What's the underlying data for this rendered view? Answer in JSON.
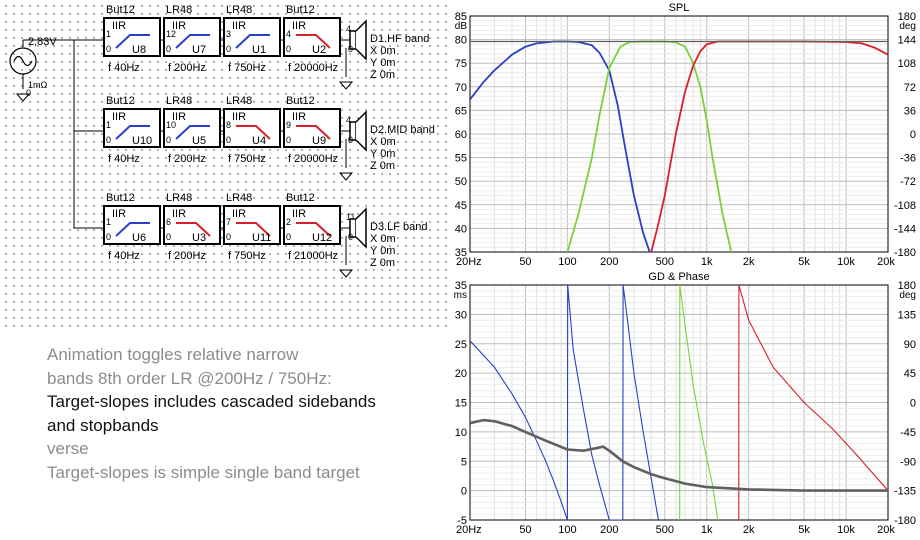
{
  "colors": {
    "hf_low_band": "#2b3fc7",
    "mid_band": "#7ad13a",
    "hf_band": "#d8202a",
    "total": "#606060",
    "grid": "#cfcfcf",
    "block_border": "#000000"
  },
  "source": {
    "voltage": "2,83V",
    "resistance": "1mΩ",
    "node": "0",
    "icon": "ac-source-icon"
  },
  "chains": [
    {
      "output": {
        "name": "D1.HF band",
        "x": "X 0m",
        "y": "Y 0m",
        "z": "Z 0m",
        "pin_top": "4",
        "pin_bottom": "0"
      },
      "blocks": [
        {
          "type": "But12",
          "kind": "IIR",
          "id": "U8",
          "freq": "f  40Hz",
          "pin_in": "1",
          "pin_gnd": "0",
          "slope": "highpass",
          "color": "#2b3fc7"
        },
        {
          "type": "LR48",
          "kind": "IIR",
          "id": "U7",
          "freq": "f  200Hz",
          "pin_in": "12",
          "pin_gnd": "0",
          "slope": "highpass",
          "color": "#2b3fc7"
        },
        {
          "type": "LR48",
          "kind": "IIR",
          "id": "U1",
          "freq": "f  750Hz",
          "pin_in": "3",
          "pin_gnd": "0",
          "slope": "highpass",
          "color": "#2b3fc7"
        },
        {
          "type": "But12",
          "kind": "IIR",
          "id": "U2",
          "freq": "f  20000Hz",
          "pin_in": "4",
          "pin_gnd": "0",
          "slope": "lowpass",
          "color": "#d8202a"
        }
      ]
    },
    {
      "output": {
        "name": "D2.MID band",
        "x": "X 0m",
        "y": "Y 0m",
        "z": "Z 0m",
        "pin_top": "4",
        "pin_bottom": "0"
      },
      "blocks": [
        {
          "type": "But12",
          "kind": "IIR",
          "id": "U10",
          "freq": "f  40Hz",
          "pin_in": "1",
          "pin_gnd": "0",
          "slope": "highpass",
          "color": "#2b3fc7"
        },
        {
          "type": "LR48",
          "kind": "IIR",
          "id": "U5",
          "freq": "f  200Hz",
          "pin_in": "10",
          "pin_gnd": "0",
          "slope": "highpass",
          "color": "#2b3fc7"
        },
        {
          "type": "LR48",
          "kind": "IIR",
          "id": "U4",
          "freq": "f  750Hz",
          "pin_in": "8",
          "pin_gnd": "0",
          "slope": "lowpass",
          "color": "#d8202a"
        },
        {
          "type": "But12",
          "kind": "IIR",
          "id": "U9",
          "freq": "f  20000Hz",
          "pin_in": "9",
          "pin_gnd": "0",
          "slope": "lowpass",
          "color": "#d8202a"
        }
      ]
    },
    {
      "output": {
        "name": "D3.LF band",
        "x": "X 0m",
        "y": "Y 0m",
        "z": "Z 0m",
        "pin_top": "11",
        "pin_bottom": "0"
      },
      "blocks": [
        {
          "type": "But12",
          "kind": "IIR",
          "id": "U6",
          "freq": "f  40Hz",
          "pin_in": "1",
          "pin_gnd": "0",
          "slope": "highpass",
          "color": "#2b3fc7"
        },
        {
          "type": "LR48",
          "kind": "IIR",
          "id": "U3",
          "freq": "f  200Hz",
          "pin_in": "6",
          "pin_gnd": "0",
          "slope": "lowpass",
          "color": "#d8202a"
        },
        {
          "type": "LR48",
          "kind": "IIR",
          "id": "U11",
          "freq": "f  750Hz",
          "pin_in": "7",
          "pin_gnd": "0",
          "slope": "lowpass",
          "color": "#d8202a"
        },
        {
          "type": "But12",
          "kind": "IIR",
          "id": "U12",
          "freq": "f  21000Hz",
          "pin_in": "2",
          "pin_gnd": "0",
          "slope": "lowpass",
          "color": "#d8202a"
        }
      ]
    }
  ],
  "notes": {
    "line1": "Animation toggles relative narrow",
    "line2": "bands 8th order LR @200Hz / 750Hz:",
    "line3": "Target-slopes includes cascaded sidebands",
    "line4": "and stopbands",
    "line5": "verse",
    "line6": "Target-slopes is simple single band target"
  },
  "chart_data": [
    {
      "type": "line",
      "title": "SPL",
      "x_scale": "log",
      "xlim": [
        20,
        20000
      ],
      "x_ticks": [
        "20Hz",
        "50",
        "100",
        "200",
        "500",
        "1k",
        "2k",
        "5k",
        "10k",
        "20k"
      ],
      "x_tick_values": [
        20,
        50,
        100,
        200,
        500,
        1000,
        2000,
        5000,
        10000,
        20000
      ],
      "y_unit": "dB",
      "ylim": [
        35,
        85
      ],
      "y_ticks": [
        "85",
        "80",
        "75",
        "70",
        "65",
        "60",
        "55",
        "50",
        "45",
        "40",
        "35"
      ],
      "y_tick_values": [
        85,
        80,
        75,
        70,
        65,
        60,
        55,
        50,
        45,
        40,
        35
      ],
      "y2_unit": "deg",
      "y2lim": [
        -180,
        180
      ],
      "y2_ticks": [
        "180",
        "144",
        "108",
        "72",
        "36",
        "0",
        "-36",
        "-72",
        "-108",
        "-144",
        "-180"
      ],
      "y2_tick_values": [
        180,
        144,
        108,
        72,
        36,
        0,
        -36,
        -72,
        -108,
        -144,
        -180
      ],
      "grid": true,
      "series": [
        {
          "color": "#2b3fc7",
          "x": [
            20,
            25,
            30,
            40,
            50,
            60,
            80,
            100,
            120,
            150,
            170,
            200,
            230,
            260,
            300,
            350,
            400
          ],
          "y": [
            67.3,
            71,
            73.5,
            76.8,
            78.5,
            79.2,
            79.6,
            79.6,
            79.5,
            78.8,
            77.2,
            73.5,
            66,
            57,
            47,
            39,
            34
          ]
        },
        {
          "color": "#7ad13a",
          "x": [
            100,
            120,
            150,
            170,
            200,
            240,
            280,
            350,
            500,
            600,
            700,
            800,
            900,
            1000,
            1100,
            1300,
            1500
          ],
          "y": [
            35,
            43,
            55,
            64,
            74,
            78.5,
            79.5,
            79.6,
            79.6,
            79.4,
            78.5,
            75,
            70,
            63,
            55,
            43,
            35
          ]
        },
        {
          "color": "#d8202a",
          "x": [
            400,
            450,
            500,
            600,
            700,
            800,
            900,
            1000,
            1200,
            1500,
            2000,
            5000,
            10000,
            13000,
            16000,
            20000
          ],
          "y": [
            35,
            41,
            47,
            60,
            69,
            74.5,
            77.5,
            79,
            79.6,
            79.6,
            79.6,
            79.6,
            79.5,
            79.2,
            78.3,
            76.8
          ]
        },
        {
          "color": "#606060",
          "x": [
            20,
            20000
          ],
          "y": [
            79.6,
            79.6
          ]
        }
      ]
    },
    {
      "type": "line",
      "title": "GD & Phase",
      "x_scale": "log",
      "xlim": [
        20,
        20000
      ],
      "x_ticks": [
        "20Hz",
        "50",
        "100",
        "200",
        "500",
        "1k",
        "2k",
        "5k",
        "10k",
        "20k"
      ],
      "x_tick_values": [
        20,
        50,
        100,
        200,
        500,
        1000,
        2000,
        5000,
        10000,
        20000
      ],
      "y_unit": "ms",
      "ylim": [
        -5,
        35
      ],
      "y_ticks": [
        "35",
        "30",
        "25",
        "20",
        "15",
        "10",
        "5",
        "0",
        "-5"
      ],
      "y_tick_values": [
        35,
        30,
        25,
        20,
        15,
        10,
        5,
        0,
        -5
      ],
      "y2_unit": "deg",
      "y2lim": [
        -180,
        180
      ],
      "y2_ticks": [
        "180",
        "135",
        "90",
        "45",
        "0",
        "-45",
        "-90",
        "-135",
        "-180"
      ],
      "y2_tick_values": [
        180,
        135,
        90,
        45,
        0,
        -45,
        -90,
        -135,
        -180
      ],
      "grid": true,
      "series": [
        {
          "color": "#2b3fc7",
          "axis": "y",
          "x": [
            20,
            30,
            40,
            50,
            60,
            70,
            80,
            90,
            100
          ],
          "y": [
            25.5,
            21,
            16.5,
            12.5,
            8.5,
            5,
            1.5,
            -1.8,
            -5
          ]
        },
        {
          "color": "#2b3fc7",
          "axis": "y",
          "x": [
            100,
            100.5,
            110,
            130,
            150,
            170,
            200,
            220,
            240,
            250
          ],
          "y": [
            -5,
            35,
            24,
            14,
            6,
            1,
            -5,
            -5,
            -5,
            -5
          ]
        },
        {
          "color": "#2b3fc7",
          "axis": "y",
          "x": [
            250,
            251,
            270,
            300,
            350,
            400,
            450
          ],
          "y": [
            -5,
            35,
            29,
            20,
            10,
            2,
            -5
          ]
        },
        {
          "color": "#7ad13a",
          "axis": "y",
          "x": [
            640,
            641,
            700,
            800,
            950,
            1100,
            1200
          ],
          "y": [
            -5,
            35,
            28,
            18,
            8,
            1,
            -5
          ]
        },
        {
          "color": "#d8202a",
          "axis": "y",
          "x": [
            1700,
            1701,
            2000,
            3000,
            5000,
            8000,
            12000,
            20000
          ],
          "y": [
            -5,
            35,
            29,
            21,
            15,
            10.5,
            6,
            0
          ]
        },
        {
          "color": "#606060",
          "axis": "y",
          "x": [
            20,
            25,
            30,
            40,
            50,
            70,
            100,
            130,
            160,
            180,
            200,
            250,
            300,
            400,
            500,
            700,
            1000,
            2000,
            5000,
            20000
          ],
          "y": [
            11.5,
            12,
            11.8,
            11,
            10,
            8.5,
            7,
            6.8,
            7.2,
            7.5,
            6.8,
            5,
            4,
            2.8,
            2.1,
            1.2,
            0.6,
            0.2,
            0,
            0
          ]
        }
      ]
    }
  ]
}
